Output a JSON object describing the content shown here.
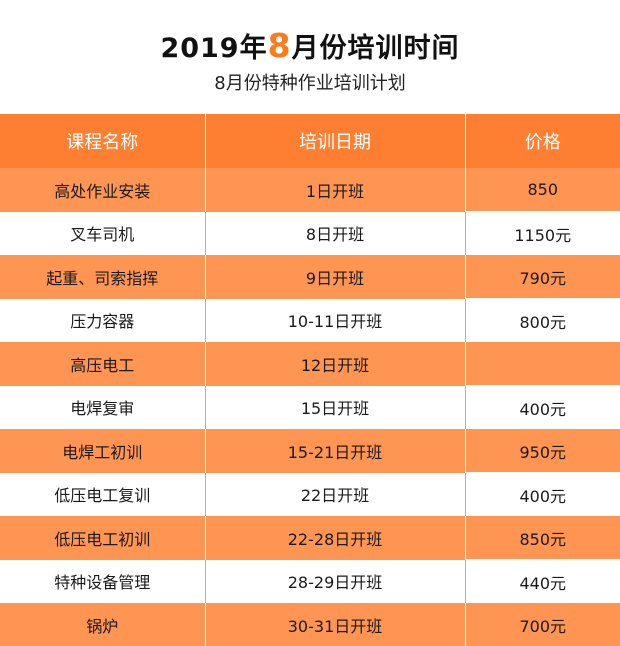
{
  "title": {
    "prefix": "2019年",
    "highlight": "8",
    "suffix": "月份培训时间"
  },
  "subtitle": "8月份特种作业培训计划",
  "table": {
    "headers": [
      "课程名称",
      "培训日期",
      "价格"
    ],
    "rows": [
      {
        "course": "高处作业安装",
        "date": "1日开班",
        "price": "850"
      },
      {
        "course": "叉车司机",
        "date": "8日开班",
        "price": "1150元"
      },
      {
        "course": "起重、司索指挥",
        "date": "9日开班",
        "price": "790元"
      },
      {
        "course": "压力容器",
        "date": "10-11日开班",
        "price": "800元"
      },
      {
        "course": "高压电工",
        "date": "12日开班",
        "price": ""
      },
      {
        "course": "电焊复审",
        "date": "15日开班",
        "price": "400元"
      },
      {
        "course": "电焊工初训",
        "date": "15-21日开班",
        "price": "950元"
      },
      {
        "course": "低压电工复训",
        "date": "22日开班",
        "price": "400元"
      },
      {
        "course": "低压电工初训",
        "date": "22-28日开班",
        "price": "850元"
      },
      {
        "course": "特种设备管理",
        "date": "28-29日开班",
        "price": "440元"
      },
      {
        "course": "锅炉",
        "date": "30-31日开班",
        "price": "700元"
      }
    ]
  },
  "colors": {
    "header": "#ff7f32",
    "stripe": "#ff9553",
    "accent": "#ff7a1a"
  }
}
